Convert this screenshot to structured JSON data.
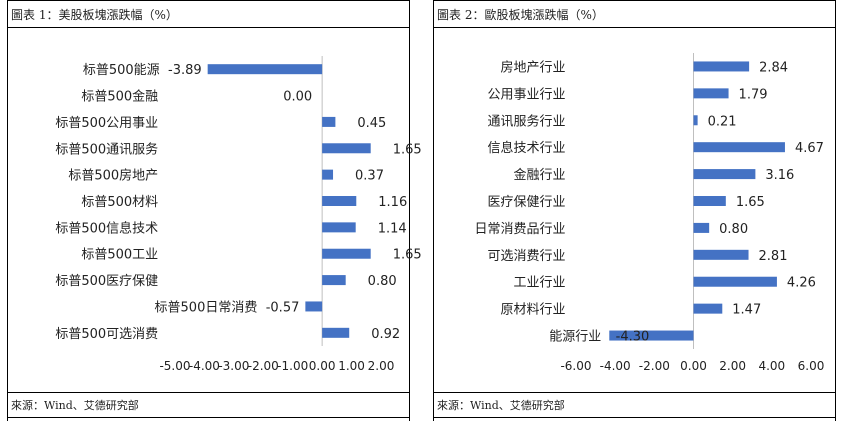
{
  "chart_data": [
    {
      "type": "bar",
      "orientation": "horizontal",
      "title": "圖表 1：美股板塊漲跌幅（%）",
      "source": "來源：Wind、艾德研究部",
      "categories": [
        "标普500能源",
        "标普500金融",
        "标普500公用事业",
        "标普500通讯服务",
        "标普500房地产",
        "标普500材料",
        "标普500信息技术",
        "标普500工业",
        "标普500医疗保健",
        "标普500日常消费",
        "标普500可选消费"
      ],
      "values": [
        -3.89,
        0.0,
        0.45,
        1.65,
        0.37,
        1.16,
        1.14,
        1.65,
        0.8,
        -0.57,
        0.92
      ],
      "value_labels": [
        "-3.89",
        "0.00",
        "0.45",
        "1.65",
        "0.37",
        "1.16",
        "1.14",
        "1.65",
        "0.80",
        "-0.57",
        "0.92"
      ],
      "xlim": [
        -5,
        2
      ],
      "x_ticks": [
        "-5.00",
        "-4.00",
        "-3.00",
        "-2.00",
        "-1.00",
        "0.00",
        "1.00",
        "2.00"
      ],
      "bar_color": "#4472c4",
      "grid": false
    },
    {
      "type": "bar",
      "orientation": "horizontal",
      "title": "圖表 2：歐股板塊漲跌幅（%）",
      "source": "來源：Wind、艾德研究部",
      "categories": [
        "房地产行业",
        "公用事业行业",
        "通讯服务行业",
        "信息技术行业",
        "金融行业",
        "医疗保健行业",
        "日常消费品行业",
        "可选消费行业",
        "工业行业",
        "原材料行业",
        "能源行业"
      ],
      "values": [
        2.84,
        1.79,
        0.21,
        4.67,
        3.16,
        1.65,
        0.8,
        2.81,
        4.26,
        1.47,
        -4.3
      ],
      "value_labels": [
        "2.84",
        "1.79",
        "0.21",
        "4.67",
        "3.16",
        "1.65",
        "0.80",
        "2.81",
        "4.26",
        "1.47",
        "-4.30"
      ],
      "xlim": [
        -6,
        6
      ],
      "x_ticks": [
        "-6.00",
        "-4.00",
        "-2.00",
        "0.00",
        "2.00",
        "4.00",
        "6.00"
      ],
      "bar_color": "#4472c4",
      "grid": false
    }
  ]
}
